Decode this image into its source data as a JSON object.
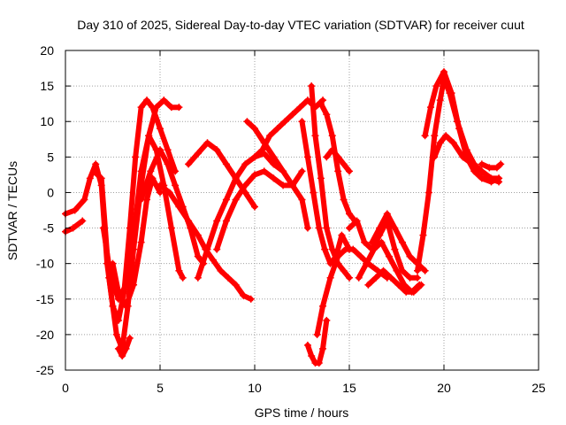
{
  "chart_data": {
    "type": "line",
    "title": "Day 310 of 2025, Sidereal Day-to-day VTEC variation (SDTVAR) for receiver cuut",
    "xlabel": "GPS time / hours",
    "ylabel": "SDTVAR / TECUs",
    "xlim": [
      0,
      25
    ],
    "ylim": [
      -25,
      20
    ],
    "xticks": [
      0,
      5,
      10,
      15,
      20,
      25
    ],
    "yticks": [
      -25,
      -20,
      -15,
      -10,
      -5,
      0,
      5,
      10,
      15,
      20
    ],
    "grid": true,
    "marker": "plus",
    "color": "#ff0000",
    "series": [
      {
        "name": "trace-1",
        "x": [
          0,
          0.5,
          1.0,
          1.3,
          1.6,
          1.9,
          2.2,
          2.5,
          2.8,
          3.1,
          3.4,
          3.7,
          4.0,
          4.3,
          4.6,
          5.0,
          5.4,
          5.8
        ],
        "y": [
          -3,
          -2.5,
          -1,
          2,
          4,
          1,
          -10,
          -16,
          -18,
          -14,
          -5,
          5,
          12,
          13,
          12,
          9,
          6,
          3
        ]
      },
      {
        "name": "trace-2",
        "x": [
          0,
          0.4,
          0.9
        ],
        "y": [
          -5.5,
          -5,
          -4
        ]
      },
      {
        "name": "trace-3",
        "x": [
          1.5,
          1.9,
          2.3,
          2.7,
          3.0,
          3.3,
          3.6,
          4.0,
          4.4,
          4.8,
          5.2,
          5.6,
          6.0,
          6.2
        ],
        "y": [
          3,
          2,
          -12,
          -20,
          -22,
          -16,
          -8,
          1,
          8,
          6,
          1,
          -5,
          -11,
          -12
        ]
      },
      {
        "name": "trace-4",
        "x": [
          2.0,
          2.4,
          2.8,
          3.2,
          3.6,
          4.0,
          4.4,
          4.8,
          5.2,
          5.6,
          6.0
        ],
        "y": [
          -5,
          -12,
          -15,
          -13,
          -6,
          3,
          8,
          12,
          13,
          12,
          12
        ]
      },
      {
        "name": "trace-5",
        "x": [
          2.5,
          2.8,
          3.2,
          3.6,
          4.0,
          4.3,
          4.6,
          5.0
        ],
        "y": [
          -10,
          -14,
          -16,
          -13,
          -7,
          -1,
          2,
          0
        ]
      },
      {
        "name": "trace-6",
        "x": [
          2.8,
          3.0,
          3.2,
          3.4
        ],
        "y": [
          -22,
          -23,
          -22,
          -20.5
        ]
      },
      {
        "name": "trace-7",
        "x": [
          4.0,
          4.5,
          5.0,
          5.4,
          5.8,
          6.2,
          6.6,
          7.0,
          7.3
        ],
        "y": [
          -1,
          3,
          6,
          4,
          1,
          -2,
          -5,
          -9,
          -10
        ]
      },
      {
        "name": "trace-8",
        "x": [
          5.0,
          5.5,
          6.0,
          6.5,
          7.0,
          7.4,
          7.8,
          8.2,
          8.6,
          9.0,
          9.4,
          9.8
        ],
        "y": [
          1,
          0,
          -2,
          -4,
          -6,
          -8,
          -9.5,
          -11,
          -12,
          -13,
          -14.5,
          -15
        ]
      },
      {
        "name": "trace-9",
        "x": [
          6.5,
          7.0,
          7.5,
          8.0,
          8.5,
          9.0,
          9.5,
          10.0
        ],
        "y": [
          4,
          5.5,
          7,
          6,
          4,
          2,
          0,
          -2
        ]
      },
      {
        "name": "trace-10",
        "x": [
          7.0,
          7.5,
          8.0,
          8.5,
          9.0,
          9.5,
          10.0,
          10.5,
          11.0,
          11.5
        ],
        "y": [
          -12,
          -8,
          -4,
          -1,
          2,
          4,
          5,
          5.5,
          4,
          3
        ]
      },
      {
        "name": "trace-11",
        "x": [
          8.0,
          8.5,
          9.0,
          9.5,
          10.0,
          10.5,
          11.0,
          11.5,
          12.0,
          12.5
        ],
        "y": [
          -8,
          -4,
          -1,
          1,
          2.5,
          3,
          2,
          1,
          1,
          3
        ]
      },
      {
        "name": "trace-12",
        "x": [
          9.6,
          10.0,
          10.5,
          11.0,
          11.5,
          12.0,
          12.5,
          12.8
        ],
        "y": [
          10,
          9,
          7,
          5,
          3,
          1,
          -1,
          -5
        ]
      },
      {
        "name": "trace-13",
        "x": [
          10.0,
          10.4,
          10.8,
          11.2,
          11.6,
          12.0,
          12.4,
          12.8,
          13.2,
          13.6
        ],
        "y": [
          5,
          6,
          8,
          9,
          10,
          11,
          12,
          13,
          12,
          13
        ]
      },
      {
        "name": "trace-14",
        "x": [
          12.5,
          12.8,
          13.1,
          13.4,
          13.7,
          14.0,
          14.3,
          14.6,
          15.0
        ],
        "y": [
          10,
          5,
          0,
          -5,
          -8,
          -10,
          -9,
          -6,
          -8
        ]
      },
      {
        "name": "trace-15",
        "x": [
          12.8,
          13.0,
          13.2,
          13.4,
          13.6,
          13.8
        ],
        "y": [
          -21.5,
          -23,
          -24,
          -24,
          -22,
          -18
        ]
      },
      {
        "name": "trace-16",
        "x": [
          13.0,
          13.2,
          13.5,
          13.8,
          14.1,
          14.4,
          14.7,
          15.0
        ],
        "y": [
          15,
          8,
          2,
          -5,
          -8,
          -10,
          -11,
          -12
        ]
      },
      {
        "name": "trace-17",
        "x": [
          13.3,
          13.6,
          14.0,
          14.4,
          14.8,
          15.2,
          15.6,
          16.0,
          16.5,
          17.0
        ],
        "y": [
          -20,
          -16,
          -12,
          -9,
          -8,
          -8,
          -9,
          -10,
          -11,
          -12
        ]
      },
      {
        "name": "trace-18",
        "x": [
          13.8,
          14.1,
          14.4,
          14.7,
          15.0
        ],
        "y": [
          5,
          6,
          5,
          4,
          3
        ]
      },
      {
        "name": "trace-19",
        "x": [
          13.5,
          13.8,
          14.1,
          14.4,
          14.7,
          15.0,
          15.3
        ],
        "y": [
          12.5,
          11,
          8,
          3,
          -1,
          -3,
          -4
        ]
      },
      {
        "name": "trace-20",
        "x": [
          15.0,
          15.4,
          15.8,
          16.2,
          16.6,
          17.0,
          17.4,
          17.8,
          18.2,
          18.6
        ],
        "y": [
          -5,
          -4,
          -7,
          -8,
          -6,
          -4,
          -8,
          -11,
          -12,
          -12
        ]
      },
      {
        "name": "trace-21",
        "x": [
          15.5,
          15.9,
          16.3,
          16.7,
          17.1,
          17.5,
          17.9,
          18.3,
          18.7
        ],
        "y": [
          -12,
          -10,
          -8,
          -7,
          -9,
          -11,
          -13,
          -14,
          -13
        ]
      },
      {
        "name": "trace-22",
        "x": [
          16.0,
          16.4,
          16.8,
          17.2,
          17.6,
          18.0,
          18.4,
          18.8
        ],
        "y": [
          -13,
          -12,
          -11,
          -12,
          -13,
          -14,
          -14,
          -13
        ]
      },
      {
        "name": "trace-23",
        "x": [
          16.2,
          16.6,
          17.0,
          17.4,
          17.8,
          18.2,
          18.6,
          19.0
        ],
        "y": [
          -7,
          -5,
          -3,
          -5,
          -7,
          -9,
          -10,
          -11
        ]
      },
      {
        "name": "trace-24",
        "x": [
          18.6,
          18.9,
          19.2,
          19.5,
          19.8,
          20.0,
          20.3,
          20.7,
          21.2,
          21.6,
          22.0,
          22.4,
          22.9
        ],
        "y": [
          -11,
          -6,
          0,
          8,
          13,
          16,
          14,
          10,
          6,
          4,
          3,
          2,
          1.5
        ]
      },
      {
        "name": "trace-25",
        "x": [
          19.0,
          19.3,
          19.6,
          20.0,
          20.4,
          20.8,
          21.2,
          21.6,
          22.0,
          22.5,
          22.9
        ],
        "y": [
          8,
          12,
          15,
          17,
          14,
          9,
          5,
          3,
          2,
          1.5,
          2
        ]
      },
      {
        "name": "trace-26",
        "x": [
          19.5,
          19.8,
          20.1,
          20.5,
          21.0,
          21.5,
          22.0,
          22.5,
          22.9
        ],
        "y": [
          5,
          7,
          8,
          7,
          5,
          4,
          3,
          2,
          2
        ]
      },
      {
        "name": "trace-27",
        "x": [
          22.0,
          22.4,
          22.8,
          23.0
        ],
        "y": [
          4,
          3.5,
          3.5,
          4
        ]
      }
    ]
  }
}
